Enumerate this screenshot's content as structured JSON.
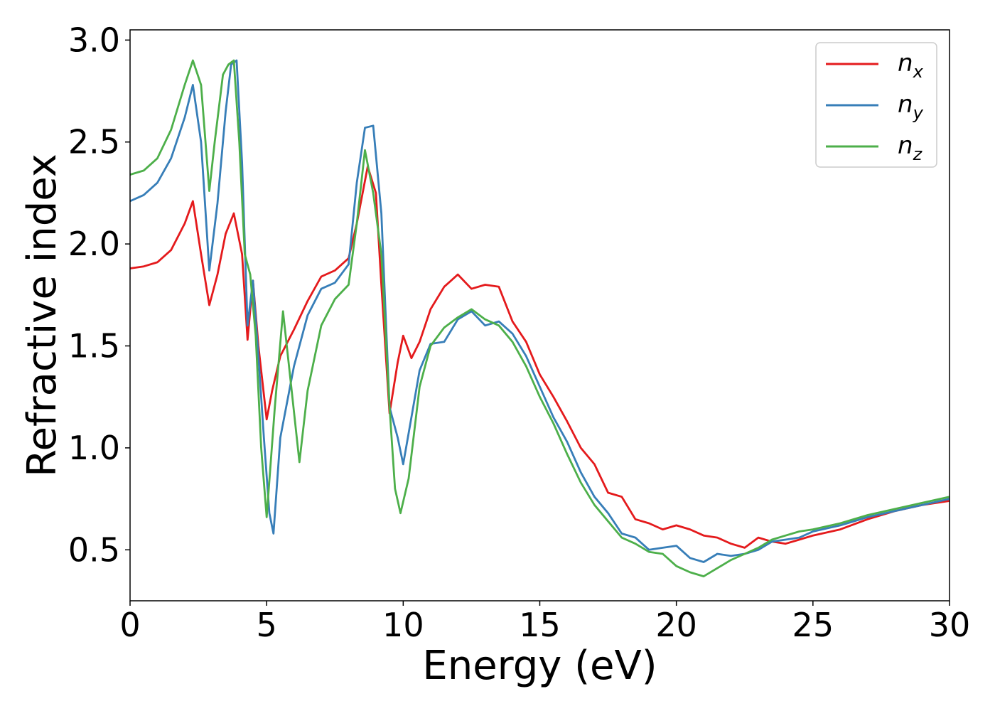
{
  "chart_data": {
    "type": "line",
    "title": "",
    "xlabel": "Energy (eV)",
    "ylabel": "Refractive index",
    "xlim": [
      0,
      30
    ],
    "ylim": [
      0.25,
      3.05
    ],
    "xticks": [
      0,
      5,
      10,
      15,
      20,
      25,
      30
    ],
    "xtick_labels": [
      "0",
      "5",
      "10",
      "15",
      "20",
      "25",
      "30"
    ],
    "yticks": [
      0.5,
      1.0,
      1.5,
      2.0,
      2.5,
      3.0
    ],
    "ytick_labels": [
      "0.5",
      "1.0",
      "1.5",
      "2.0",
      "2.5",
      "3.0"
    ],
    "grid": false,
    "legend_position": "top-right",
    "series": [
      {
        "name": "n",
        "subscript": "x",
        "color": "#e41a1c",
        "x": [
          0,
          0.5,
          1,
          1.5,
          2,
          2.3,
          2.6,
          2.9,
          3.2,
          3.5,
          3.8,
          4.1,
          4.3,
          4.5,
          4.7,
          5.0,
          5.2,
          5.5,
          6,
          6.5,
          7,
          7.5,
          8,
          8.3,
          8.7,
          9,
          9.2,
          9.5,
          9.8,
          10,
          10.3,
          10.6,
          11,
          11.5,
          12,
          12.5,
          13,
          13.5,
          14,
          14.5,
          15,
          15.5,
          16,
          16.5,
          17,
          17.5,
          18,
          18.5,
          19,
          19.5,
          20,
          20.5,
          21,
          21.5,
          22,
          22.5,
          23,
          23.5,
          24,
          24.5,
          25,
          26,
          27,
          28,
          29,
          30
        ],
        "y": [
          1.88,
          1.89,
          1.91,
          1.97,
          2.1,
          2.21,
          1.95,
          1.7,
          1.85,
          2.05,
          2.15,
          1.95,
          1.53,
          1.82,
          1.5,
          1.14,
          1.28,
          1.45,
          1.58,
          1.72,
          1.84,
          1.87,
          1.93,
          2.1,
          2.38,
          2.25,
          1.8,
          1.17,
          1.42,
          1.55,
          1.44,
          1.52,
          1.68,
          1.79,
          1.85,
          1.78,
          1.8,
          1.79,
          1.62,
          1.52,
          1.36,
          1.25,
          1.13,
          1.0,
          0.92,
          0.78,
          0.76,
          0.65,
          0.63,
          0.6,
          0.62,
          0.6,
          0.57,
          0.56,
          0.53,
          0.51,
          0.56,
          0.54,
          0.53,
          0.55,
          0.57,
          0.6,
          0.65,
          0.69,
          0.72,
          0.74
        ]
      },
      {
        "name": "n",
        "subscript": "y",
        "color": "#377eb8",
        "x": [
          0,
          0.5,
          1,
          1.5,
          2,
          2.3,
          2.6,
          2.9,
          3.2,
          3.5,
          3.7,
          3.9,
          4.1,
          4.3,
          4.5,
          4.7,
          4.9,
          5.1,
          5.25,
          5.5,
          6,
          6.5,
          7,
          7.5,
          8,
          8.3,
          8.6,
          8.9,
          9.2,
          9.5,
          9.8,
          10,
          10.3,
          10.6,
          11,
          11.5,
          12,
          12.5,
          13,
          13.5,
          14,
          14.5,
          15,
          15.5,
          16,
          16.5,
          17,
          17.5,
          18,
          18.5,
          19,
          19.5,
          20,
          20.5,
          21,
          21.5,
          22,
          22.5,
          23,
          23.5,
          24,
          24.5,
          25,
          26,
          27,
          28,
          29,
          30
        ],
        "y": [
          2.21,
          2.24,
          2.3,
          2.42,
          2.62,
          2.78,
          2.5,
          1.87,
          2.2,
          2.65,
          2.88,
          2.9,
          2.4,
          1.6,
          1.82,
          1.45,
          1.05,
          0.68,
          0.58,
          1.05,
          1.4,
          1.65,
          1.78,
          1.81,
          1.9,
          2.3,
          2.57,
          2.58,
          2.15,
          1.2,
          1.05,
          0.92,
          1.15,
          1.38,
          1.51,
          1.52,
          1.63,
          1.67,
          1.6,
          1.62,
          1.56,
          1.45,
          1.3,
          1.15,
          1.03,
          0.88,
          0.76,
          0.68,
          0.58,
          0.56,
          0.5,
          0.51,
          0.52,
          0.46,
          0.44,
          0.48,
          0.47,
          0.48,
          0.5,
          0.54,
          0.55,
          0.56,
          0.59,
          0.62,
          0.66,
          0.69,
          0.72,
          0.75
        ]
      },
      {
        "name": "n",
        "subscript": "z",
        "color": "#4daf4a",
        "x": [
          0,
          0.5,
          1,
          1.5,
          2,
          2.3,
          2.6,
          2.9,
          3.1,
          3.4,
          3.6,
          3.8,
          4.0,
          4.2,
          4.4,
          4.6,
          4.8,
          5.0,
          5.3,
          5.6,
          5.9,
          6.2,
          6.5,
          7,
          7.5,
          8,
          8.3,
          8.6,
          8.9,
          9.2,
          9.5,
          9.7,
          9.9,
          10.2,
          10.6,
          11,
          11.5,
          12,
          12.5,
          13,
          13.5,
          14,
          14.5,
          15,
          15.5,
          16,
          16.5,
          17,
          17.5,
          18,
          18.5,
          19,
          19.5,
          20,
          20.5,
          21,
          21.5,
          22,
          22.5,
          23,
          23.5,
          24,
          24.5,
          25,
          26,
          27,
          28,
          29,
          30
        ],
        "y": [
          2.34,
          2.36,
          2.42,
          2.56,
          2.78,
          2.9,
          2.78,
          2.26,
          2.5,
          2.83,
          2.88,
          2.9,
          2.5,
          1.95,
          1.85,
          1.55,
          1.0,
          0.66,
          1.2,
          1.67,
          1.3,
          0.93,
          1.28,
          1.6,
          1.73,
          1.8,
          2.1,
          2.46,
          2.25,
          1.95,
          1.2,
          0.8,
          0.68,
          0.85,
          1.3,
          1.5,
          1.59,
          1.64,
          1.68,
          1.63,
          1.6,
          1.52,
          1.4,
          1.25,
          1.12,
          0.97,
          0.83,
          0.72,
          0.64,
          0.56,
          0.53,
          0.49,
          0.48,
          0.42,
          0.39,
          0.37,
          0.41,
          0.45,
          0.48,
          0.51,
          0.55,
          0.57,
          0.59,
          0.6,
          0.63,
          0.67,
          0.7,
          0.73,
          0.76
        ]
      }
    ]
  }
}
